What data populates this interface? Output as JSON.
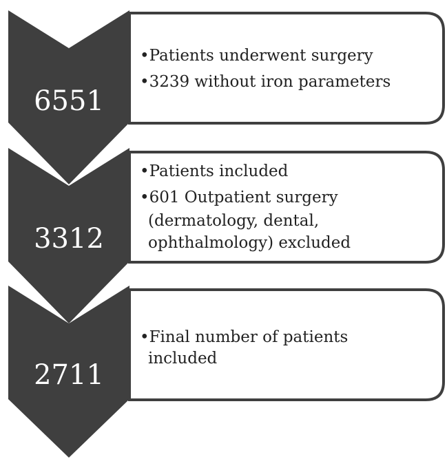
{
  "steps": [
    {
      "number": "6551",
      "lines": [
        "•Patients underwent surgery",
        "•3239 without iron parameters"
      ]
    },
    {
      "number": "3312",
      "lines": [
        "•Patients included",
        "•601 Outpatient surgery",
        "(dermatology, dental,",
        "ophthalmology) excluded"
      ]
    },
    {
      "number": "2711",
      "lines": [
        "•Final number of patients",
        "included"
      ]
    }
  ]
}
